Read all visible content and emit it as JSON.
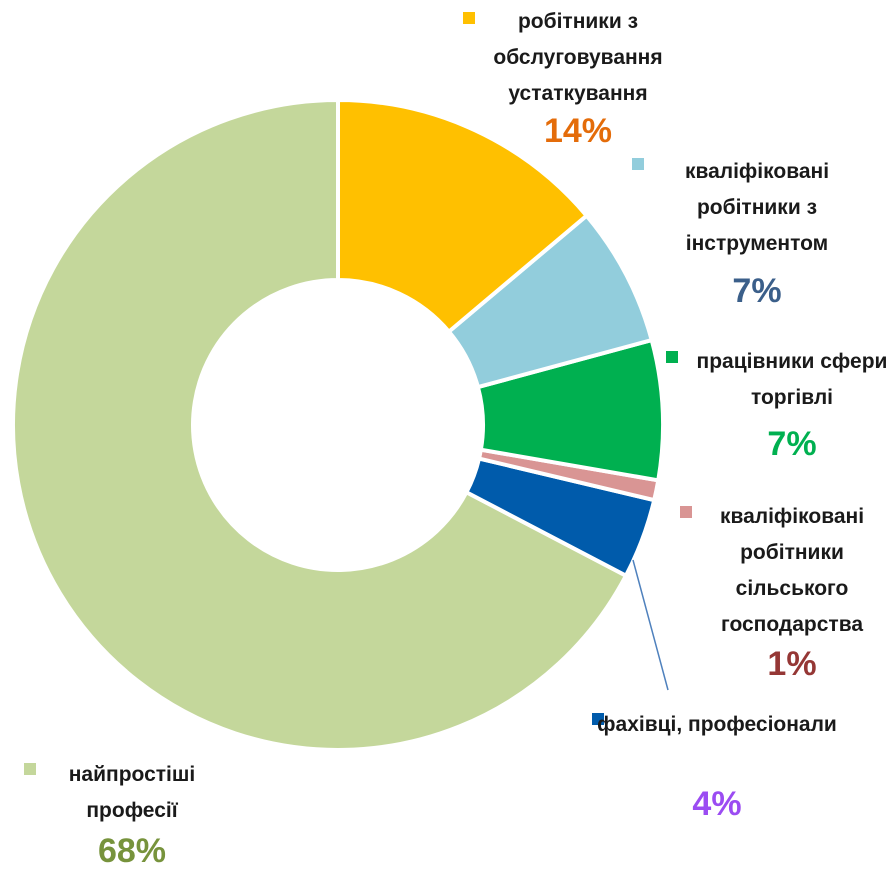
{
  "chart_data": {
    "type": "donut",
    "categories": [
      "робітники з обслуговування устаткування",
      "кваліфіковані робітники з інструментом",
      "працівники сфери торгівлі",
      "кваліфіковані робітники сільського господарства",
      "фахівці, професіонали",
      "найпростіші професії"
    ],
    "values": [
      14,
      7,
      7,
      1,
      4,
      68
    ],
    "value_labels": [
      "14%",
      "7%",
      "7%",
      "1%",
      "4%",
      "68%"
    ],
    "colors": [
      "#ffc000",
      "#92cddc",
      "#00b050",
      "#d99594",
      "#005bab",
      "#c4d79b"
    ],
    "value_label_colors": [
      "#e46c0a",
      "#3b5f8a",
      "#00b050",
      "#953735",
      "#9b4cf2",
      "#77933c"
    ]
  }
}
